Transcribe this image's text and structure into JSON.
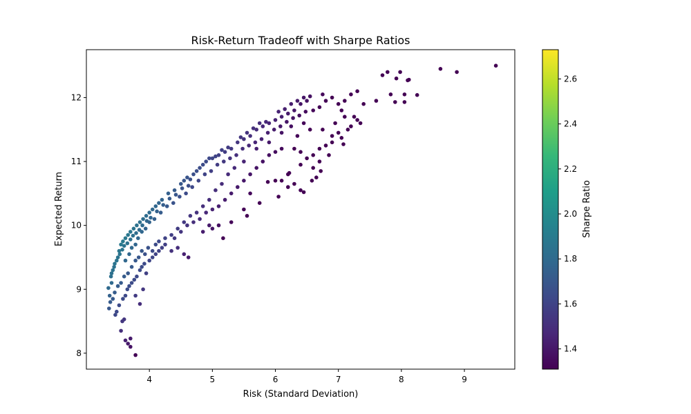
{
  "chart_data": {
    "type": "scatter",
    "title": "Risk-Return Tradeoff with Sharpe Ratios",
    "xlabel": "Risk (Standard Deviation)",
    "ylabel": "Expected Return",
    "xlim": [
      3.0,
      9.8
    ],
    "ylim": [
      7.75,
      12.75
    ],
    "xticks": [
      4,
      5,
      6,
      7,
      8,
      9
    ],
    "yticks": [
      8,
      9,
      10,
      11,
      12
    ],
    "grid": false,
    "colorbar": {
      "label": "Sharpe Ratio",
      "colormap": "viridis",
      "range": [
        1.31,
        2.73
      ],
      "ticks": [
        1.4,
        1.6,
        1.8,
        2.0,
        2.2,
        2.4,
        2.6
      ]
    },
    "viridis_colors": [
      "#440154",
      "#482878",
      "#3e4989",
      "#31688e",
      "#26828e",
      "#1f9e89",
      "#35b779",
      "#6ece58",
      "#b5de2b",
      "#fde725"
    ],
    "point_color_rule": "sharpe = (expected_return - 3) / risk",
    "points": [
      [
        3.35,
        9.02
      ],
      [
        3.37,
        8.9
      ],
      [
        3.38,
        8.8
      ],
      [
        3.36,
        8.7
      ],
      [
        3.4,
        9.1
      ],
      [
        3.39,
        9.2
      ],
      [
        3.42,
        9.3
      ],
      [
        3.45,
        9.4
      ],
      [
        3.46,
        8.6
      ],
      [
        3.48,
        8.65
      ],
      [
        3.5,
        9.5
      ],
      [
        3.52,
        9.6
      ],
      [
        3.55,
        9.7
      ],
      [
        3.58,
        9.75
      ],
      [
        3.62,
        9.8
      ],
      [
        3.66,
        9.85
      ],
      [
        3.7,
        9.9
      ],
      [
        3.75,
        9.95
      ],
      [
        3.8,
        10.0
      ],
      [
        3.85,
        10.05
      ],
      [
        3.9,
        10.1
      ],
      [
        3.95,
        10.15
      ],
      [
        4.0,
        10.2
      ],
      [
        4.05,
        10.25
      ],
      [
        4.1,
        10.3
      ],
      [
        4.15,
        10.35
      ],
      [
        4.2,
        10.4
      ],
      [
        4.3,
        10.5
      ],
      [
        4.4,
        10.55
      ],
      [
        4.5,
        10.65
      ],
      [
        4.6,
        10.75
      ],
      [
        4.7,
        10.8
      ],
      [
        4.8,
        10.9
      ],
      [
        4.9,
        11.0
      ],
      [
        5.0,
        11.05
      ],
      [
        5.1,
        11.1
      ],
      [
        5.2,
        11.15
      ],
      [
        5.3,
        11.2
      ],
      [
        5.4,
        11.3
      ],
      [
        5.5,
        11.35
      ],
      [
        5.6,
        11.4
      ],
      [
        5.7,
        11.5
      ],
      [
        5.8,
        11.55
      ],
      [
        5.9,
        11.6
      ],
      [
        6.0,
        11.65
      ],
      [
        6.1,
        11.7
      ],
      [
        6.2,
        11.75
      ],
      [
        6.3,
        11.8
      ],
      [
        6.4,
        11.9
      ],
      [
        6.5,
        11.95
      ],
      [
        6.6,
        11.8
      ],
      [
        6.7,
        11.85
      ],
      [
        6.8,
        11.95
      ],
      [
        6.9,
        12.0
      ],
      [
        7.0,
        11.9
      ],
      [
        7.1,
        11.95
      ],
      [
        7.2,
        12.05
      ],
      [
        7.3,
        12.1
      ],
      [
        7.4,
        11.9
      ],
      [
        7.6,
        11.95
      ],
      [
        7.7,
        12.35
      ],
      [
        7.78,
        12.4
      ],
      [
        7.92,
        12.3
      ],
      [
        7.98,
        12.4
      ],
      [
        8.1,
        12.27
      ],
      [
        8.12,
        12.28
      ],
      [
        7.83,
        12.05
      ],
      [
        8.05,
        12.05
      ],
      [
        8.25,
        12.04
      ],
      [
        7.9,
        11.93
      ],
      [
        8.05,
        11.93
      ],
      [
        8.62,
        12.45
      ],
      [
        8.88,
        12.4
      ],
      [
        9.5,
        12.5
      ],
      [
        3.57,
        8.5
      ],
      [
        3.6,
        8.53
      ],
      [
        3.55,
        8.35
      ],
      [
        3.62,
        8.2
      ],
      [
        3.66,
        8.15
      ],
      [
        3.7,
        8.1
      ],
      [
        3.7,
        8.23
      ],
      [
        3.78,
        7.97
      ],
      [
        3.52,
        8.75
      ],
      [
        3.58,
        8.85
      ],
      [
        3.62,
        8.9
      ],
      [
        3.65,
        9.0
      ],
      [
        3.68,
        9.05
      ],
      [
        3.72,
        9.1
      ],
      [
        3.76,
        9.15
      ],
      [
        3.8,
        9.2
      ],
      [
        3.85,
        9.3
      ],
      [
        3.88,
        9.35
      ],
      [
        3.92,
        9.4
      ],
      [
        3.95,
        9.25
      ],
      [
        3.9,
        9.0
      ],
      [
        3.85,
        8.77
      ],
      [
        3.78,
        8.9
      ],
      [
        4.0,
        9.45
      ],
      [
        4.05,
        9.5
      ],
      [
        4.1,
        9.55
      ],
      [
        4.15,
        9.6
      ],
      [
        4.2,
        9.65
      ],
      [
        4.25,
        9.7
      ],
      [
        4.35,
        9.6
      ],
      [
        4.45,
        9.65
      ],
      [
        4.55,
        9.55
      ],
      [
        4.62,
        9.5
      ],
      [
        4.4,
        9.8
      ],
      [
        4.5,
        9.9
      ],
      [
        4.6,
        10.0
      ],
      [
        4.7,
        10.05
      ],
      [
        4.8,
        10.1
      ],
      [
        4.9,
        10.2
      ],
      [
        5.0,
        10.25
      ],
      [
        5.1,
        10.3
      ],
      [
        5.2,
        10.4
      ],
      [
        5.3,
        10.5
      ],
      [
        5.1,
        10.0
      ],
      [
        5.17,
        9.8
      ],
      [
        4.95,
        10.0
      ],
      [
        5.0,
        9.95
      ],
      [
        4.85,
        9.9
      ],
      [
        5.4,
        10.6
      ],
      [
        5.5,
        10.7
      ],
      [
        5.6,
        10.8
      ],
      [
        5.7,
        10.9
      ],
      [
        5.8,
        11.0
      ],
      [
        5.9,
        11.1
      ],
      [
        6.0,
        11.15
      ],
      [
        6.1,
        11.2
      ],
      [
        5.6,
        10.5
      ],
      [
        5.75,
        10.35
      ],
      [
        5.55,
        10.15
      ],
      [
        5.5,
        10.25
      ],
      [
        5.3,
        10.05
      ],
      [
        5.88,
        10.68
      ],
      [
        6.0,
        10.7
      ],
      [
        6.1,
        10.7
      ],
      [
        6.2,
        10.8
      ],
      [
        6.22,
        10.82
      ],
      [
        6.4,
        10.95
      ],
      [
        6.5,
        11.05
      ],
      [
        6.6,
        11.1
      ],
      [
        6.7,
        11.2
      ],
      [
        6.8,
        11.25
      ],
      [
        6.9,
        11.3
      ],
      [
        6.4,
        10.55
      ],
      [
        6.45,
        10.52
      ],
      [
        6.58,
        10.7
      ],
      [
        6.65,
        10.75
      ],
      [
        6.72,
        10.85
      ],
      [
        7.05,
        11.37
      ],
      [
        7.08,
        11.27
      ],
      [
        6.3,
        11.2
      ],
      [
        6.4,
        11.15
      ],
      [
        6.35,
        11.4
      ],
      [
        6.55,
        11.5
      ],
      [
        6.75,
        11.5
      ],
      [
        6.95,
        11.6
      ],
      [
        7.1,
        11.7
      ],
      [
        7.3,
        11.65
      ],
      [
        7.35,
        11.6
      ],
      [
        7.25,
        11.7
      ],
      [
        7.05,
        11.8
      ],
      [
        6.45,
        11.6
      ],
      [
        6.25,
        11.55
      ],
      [
        6.1,
        11.45
      ],
      [
        5.9,
        11.3
      ],
      [
        5.7,
        11.2
      ],
      [
        5.5,
        11.0
      ],
      [
        5.35,
        10.9
      ],
      [
        5.25,
        10.8
      ],
      [
        5.15,
        10.65
      ],
      [
        5.05,
        10.55
      ],
      [
        4.95,
        10.4
      ],
      [
        4.85,
        10.3
      ],
      [
        4.75,
        10.2
      ],
      [
        4.65,
        10.15
      ],
      [
        4.55,
        10.05
      ],
      [
        4.45,
        9.95
      ],
      [
        4.35,
        9.85
      ],
      [
        4.25,
        9.8
      ],
      [
        4.15,
        9.75
      ],
      [
        4.1,
        9.7
      ],
      [
        4.05,
        9.6
      ],
      [
        3.98,
        9.65
      ],
      [
        3.93,
        9.55
      ],
      [
        3.88,
        9.6
      ],
      [
        3.83,
        9.5
      ],
      [
        3.78,
        9.45
      ],
      [
        3.72,
        9.35
      ],
      [
        3.66,
        9.25
      ],
      [
        3.6,
        9.2
      ],
      [
        3.55,
        9.1
      ],
      [
        3.5,
        9.05
      ],
      [
        3.45,
        8.95
      ],
      [
        3.42,
        8.85
      ],
      [
        3.62,
        9.45
      ],
      [
        3.68,
        9.55
      ],
      [
        3.72,
        9.65
      ],
      [
        3.78,
        9.7
      ],
      [
        3.82,
        9.8
      ],
      [
        3.88,
        9.9
      ],
      [
        3.94,
        9.95
      ],
      [
        4.0,
        10.05
      ],
      [
        4.08,
        10.1
      ],
      [
        4.18,
        10.2
      ],
      [
        4.28,
        10.3
      ],
      [
        4.38,
        10.35
      ],
      [
        4.48,
        10.45
      ],
      [
        4.58,
        10.5
      ],
      [
        4.68,
        10.6
      ],
      [
        4.78,
        10.7
      ],
      [
        4.88,
        10.8
      ],
      [
        4.98,
        10.85
      ],
      [
        5.08,
        10.95
      ],
      [
        5.18,
        11.0
      ],
      [
        5.28,
        11.05
      ],
      [
        5.38,
        11.1
      ],
      [
        5.48,
        11.2
      ],
      [
        5.58,
        11.25
      ],
      [
        5.68,
        11.3
      ],
      [
        5.78,
        11.35
      ],
      [
        5.88,
        11.45
      ],
      [
        5.98,
        11.5
      ],
      [
        6.08,
        11.55
      ],
      [
        6.18,
        11.62
      ],
      [
        6.28,
        11.68
      ],
      [
        6.38,
        11.72
      ],
      [
        6.48,
        11.78
      ],
      [
        4.55,
        10.7
      ],
      [
        4.65,
        10.72
      ],
      [
        4.75,
        10.85
      ],
      [
        4.85,
        10.95
      ],
      [
        4.95,
        11.05
      ],
      [
        5.05,
        11.08
      ],
      [
        5.15,
        11.18
      ],
      [
        5.25,
        11.22
      ],
      [
        5.45,
        11.38
      ],
      [
        5.55,
        11.45
      ],
      [
        5.65,
        11.52
      ],
      [
        5.75,
        11.6
      ],
      [
        5.85,
        11.62
      ],
      [
        6.05,
        11.78
      ],
      [
        6.15,
        11.82
      ],
      [
        6.25,
        11.9
      ],
      [
        6.35,
        11.95
      ],
      [
        6.45,
        12.0
      ],
      [
        6.55,
        12.02
      ],
      [
        6.75,
        12.05
      ],
      [
        3.4,
        9.25
      ],
      [
        3.44,
        9.35
      ],
      [
        3.48,
        9.45
      ],
      [
        3.53,
        9.55
      ],
      [
        3.57,
        9.62
      ],
      [
        3.6,
        9.68
      ],
      [
        3.65,
        9.72
      ],
      [
        3.7,
        9.78
      ],
      [
        3.74,
        9.84
      ],
      [
        3.79,
        9.88
      ],
      [
        3.84,
        9.93
      ],
      [
        3.89,
        10.0
      ],
      [
        3.96,
        10.07
      ],
      [
        4.02,
        10.12
      ],
      [
        4.12,
        10.22
      ],
      [
        4.22,
        10.32
      ],
      [
        4.32,
        10.42
      ],
      [
        4.42,
        10.48
      ],
      [
        4.52,
        10.58
      ],
      [
        4.62,
        10.62
      ],
      [
        6.9,
        11.4
      ],
      [
        7.0,
        11.45
      ],
      [
        7.15,
        11.5
      ],
      [
        7.2,
        11.55
      ],
      [
        6.85,
        11.1
      ],
      [
        6.7,
        11.0
      ],
      [
        6.6,
        10.9
      ],
      [
        6.3,
        10.65
      ],
      [
        6.2,
        10.6
      ],
      [
        6.05,
        10.45
      ]
    ]
  }
}
